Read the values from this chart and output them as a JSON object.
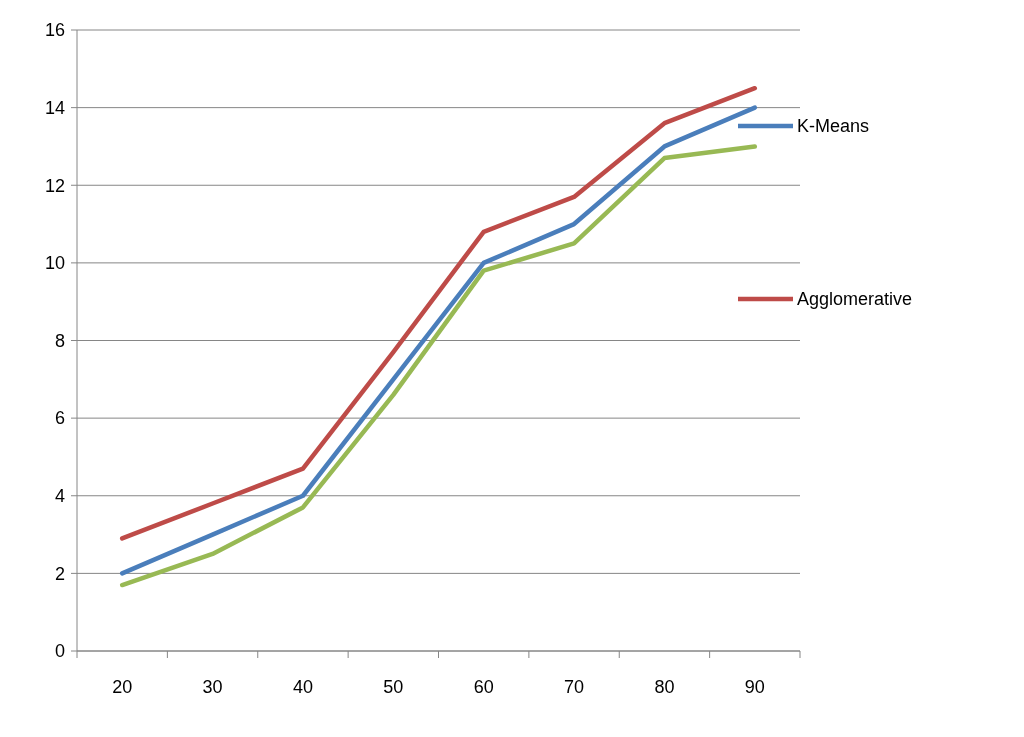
{
  "chart_data": {
    "type": "line",
    "categories": [
      "20",
      "30",
      "40",
      "50",
      "60",
      "70",
      "80",
      "90"
    ],
    "series": [
      {
        "name": "K-Means",
        "color": "#4a7ebb",
        "values": [
          2,
          3,
          4,
          7,
          10,
          11,
          13,
          14
        ]
      },
      {
        "name": "Agglomerative",
        "color": "#be4b48",
        "values": [
          2.9,
          3.8,
          4.7,
          7.7,
          10.8,
          11.7,
          13.6,
          14.5
        ]
      },
      {
        "color": "#98b954",
        "values": [
          1.7,
          2.5,
          3.7,
          6.6,
          9.8,
          10.5,
          12.7,
          13
        ]
      }
    ],
    "ylim": [
      0,
      16
    ],
    "yticks": [
      0,
      2,
      4,
      6,
      8,
      10,
      12,
      14,
      16
    ],
    "grid": "y",
    "legend": "right",
    "marker": "none",
    "line_style": "solid"
  }
}
